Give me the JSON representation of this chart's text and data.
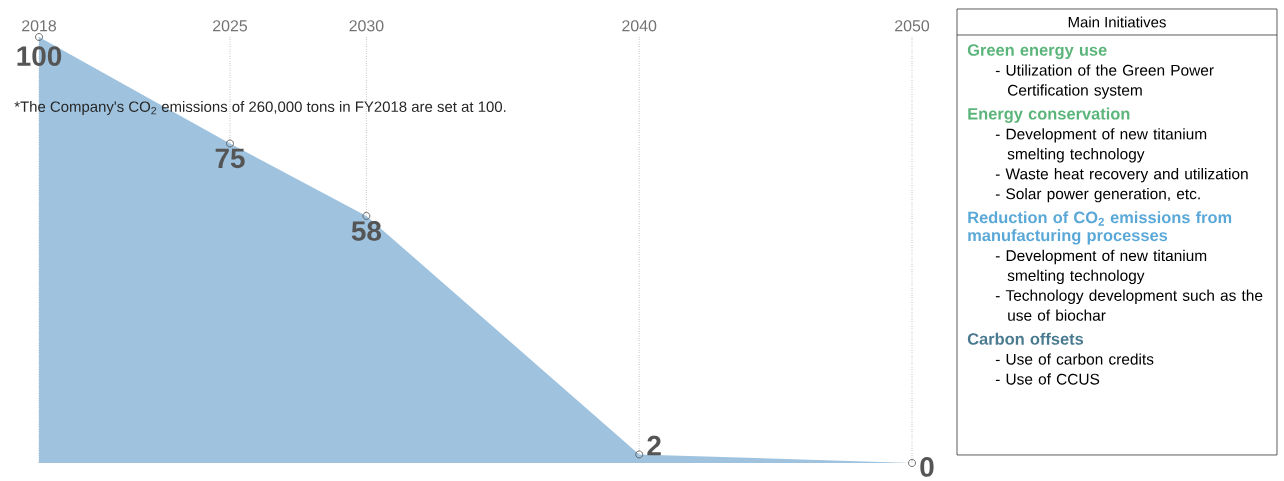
{
  "chart_data": {
    "type": "area",
    "x": [
      2018,
      2025,
      2030,
      2040,
      2050
    ],
    "values": [
      100,
      75,
      58,
      2,
      0
    ],
    "color": "#9fc3df",
    "xlim": [
      2018,
      2050
    ],
    "xticks": [
      2018,
      2025,
      2030,
      2040,
      2050
    ],
    "grid": "x",
    "tick_labels": "x",
    "marker": "circle",
    "data_labels": true,
    "annotations": [
      "*The Company's CO$_{2}$ emissions of 260,000 tons in FY2018 are set at 100.",
      "Main Initiatives",
      "Green energy use",
      "- Utilization of the Green Power Certification system",
      "Energy conservation",
      "- Development of new titanium smelting technology",
      "- Waste heat recovery and utilization",
      "- Solar power generation, etc.",
      "Reduction of CO$_{2}$ emissions from manufacturing processes",
      "- Development of new titanium smelting technology",
      "- Technology development such as the use of biochar",
      "Carbon offsets",
      "- Use of carbon credits",
      "- Use of CCUS"
    ]
  }
}
